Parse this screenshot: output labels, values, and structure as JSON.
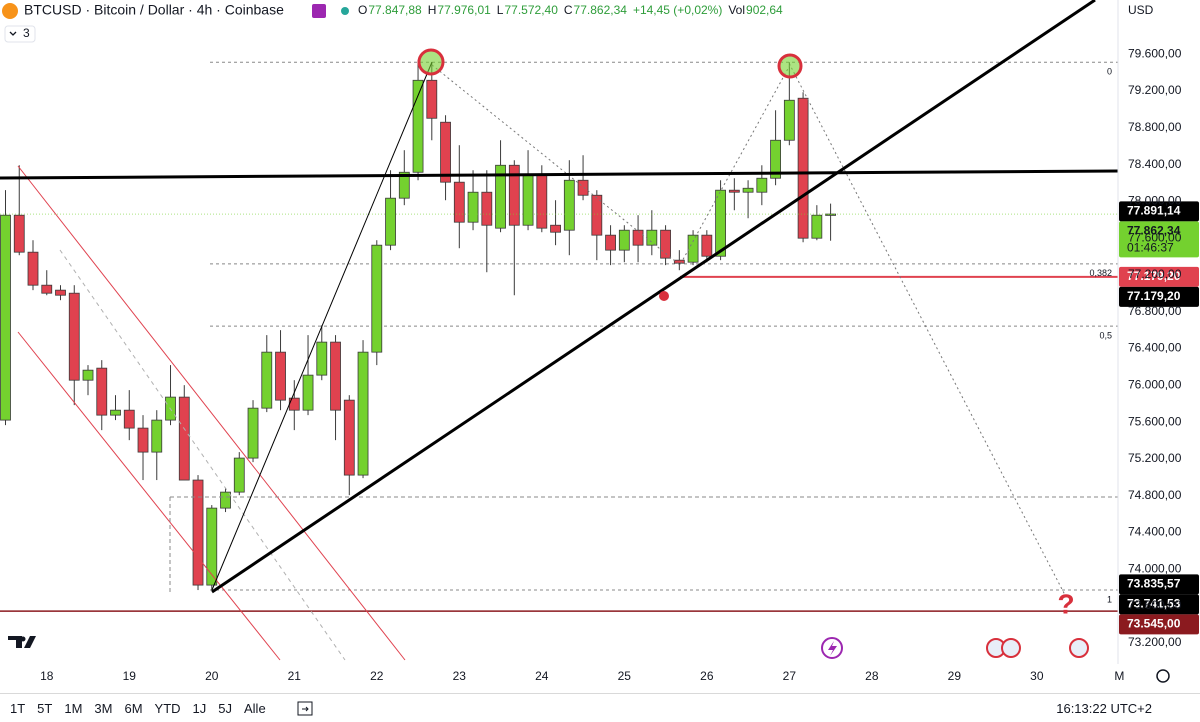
{
  "header": {
    "symbol": "BTCUSD · Bitcoin / Dollar · 4h · Coinbase",
    "ohlc": [
      {
        "key": "O",
        "value": "77.847,88"
      },
      {
        "key": "H",
        "value": "77.976,01"
      },
      {
        "key": "L",
        "value": "77.572,40"
      },
      {
        "key": "C",
        "value": "77.862,34"
      }
    ],
    "change": "+14,45 (+0,02%)",
    "vol_key": "Vol",
    "vol": "902,64",
    "indicators": "3",
    "currency": "USD"
  },
  "chart_data": {
    "type": "candlestick",
    "open": [
      75622,
      77850,
      77448,
      77089,
      77035,
      77002,
      76056,
      76187,
      75676,
      75730,
      75535,
      75274,
      75622,
      75872,
      74970,
      73828,
      74665,
      74839,
      75209,
      75752,
      76361,
      75861,
      75730,
      76111,
      76470,
      75839,
      75024,
      76361,
      77524,
      78035,
      78317,
      79317,
      78861,
      78209,
      77774,
      78100,
      77709,
      78393,
      77741,
      78285,
      77741,
      77687,
      78230,
      78067,
      77633,
      77470,
      77687,
      77524,
      77687,
      77361,
      77339,
      77633,
      77404,
      78122,
      78100,
      78100,
      78252,
      78665,
      79122,
      77600,
      77847.88
    ],
    "high": [
      78122,
      78393,
      77578,
      77252,
      77089,
      77089,
      76220,
      76274,
      75893,
      75948,
      75676,
      75730,
      76220,
      76002,
      75024,
      74698,
      74883,
      75274,
      75839,
      76546,
      76600,
      76056,
      76546,
      76654,
      76546,
      75893,
      76491,
      77578,
      78339,
      78557,
      79535,
      79513,
      78937,
      78611,
      78339,
      78339,
      78665,
      78448,
      78557,
      78393,
      78013,
      78448,
      78502,
      78122,
      77741,
      77741,
      77850,
      77904,
      77741,
      77470,
      77687,
      77687,
      78230,
      78252,
      78230,
      78393,
      78991,
      79513,
      79187,
      77959,
      77976.01
    ],
    "low": [
      75567,
      77415,
      77035,
      76980,
      76926,
      75785,
      75893,
      75513,
      75622,
      75404,
      74970,
      74970,
      75567,
      74970,
      73774,
      73774,
      74622,
      74806,
      75165,
      75709,
      75730,
      75513,
      75676,
      76056,
      75404,
      74806,
      74991,
      76220,
      77470,
      77959,
      78230,
      78665,
      78013,
      77491,
      77687,
      77230,
      77665,
      76980,
      77687,
      77665,
      77524,
      77415,
      78013,
      77361,
      77307,
      77339,
      77339,
      77415,
      77307,
      77252,
      77307,
      77339,
      77361,
      77904,
      77817,
      77959,
      78176,
      78611,
      77556,
      77578,
      77572.4
    ],
    "close": [
      77850,
      77448,
      77089,
      77002,
      76980,
      76056,
      76165,
      75676,
      75730,
      75535,
      75274,
      75622,
      75872,
      74970,
      73828,
      74665,
      74839,
      75209,
      75752,
      76361,
      75839,
      75730,
      76111,
      76470,
      75730,
      75024,
      76361,
      77524,
      78035,
      78317,
      79317,
      78904,
      78209,
      77774,
      78100,
      77741,
      78393,
      77741,
      78285,
      77709,
      77665,
      78230,
      78067,
      77633,
      77470,
      77687,
      77524,
      77687,
      77383,
      77328,
      77633,
      77404,
      78122,
      78100,
      78143,
      78252,
      78665,
      79100,
      77600,
      77850,
      77862.34
    ],
    "up_color": "#74d12f",
    "down_color": "#e0424f",
    "xlim": [
      -0.4,
      80.9
    ],
    "xticks": [
      {
        "value": 3,
        "label": "18"
      },
      {
        "value": 9,
        "label": "19"
      },
      {
        "value": 15,
        "label": "20"
      },
      {
        "value": 21,
        "label": "21"
      },
      {
        "value": 27,
        "label": "22"
      },
      {
        "value": 33,
        "label": "23"
      },
      {
        "value": 39,
        "label": "24"
      },
      {
        "value": 45,
        "label": "25"
      },
      {
        "value": 51,
        "label": "26"
      },
      {
        "value": 57,
        "label": "27"
      },
      {
        "value": 63,
        "label": "28"
      },
      {
        "value": 69,
        "label": "29"
      },
      {
        "value": 75,
        "label": "30"
      },
      {
        "value": 81,
        "label": "M"
      }
    ],
    "ylim": [
      72970,
      80190
    ],
    "yticks": [
      {
        "value": 73200,
        "label": "73.200,00"
      },
      {
        "value": 73600,
        "label": "73.600,00"
      },
      {
        "value": 74000,
        "label": "74.000,00"
      },
      {
        "value": 74400,
        "label": "74.400,00"
      },
      {
        "value": 74800,
        "label": "74.800,00"
      },
      {
        "value": 75200,
        "label": "75.200,00"
      },
      {
        "value": 75600,
        "label": "75.600,00"
      },
      {
        "value": 76000,
        "label": "76.000,00"
      },
      {
        "value": 76400,
        "label": "76.400,00"
      },
      {
        "value": 76800,
        "label": "76.800,00"
      },
      {
        "value": 77200,
        "label": "77.200,00"
      },
      {
        "value": 77600,
        "label": "77.600,00"
      },
      {
        "value": 78000,
        "label": "78.000,00"
      },
      {
        "value": 78400,
        "label": "78.400,00"
      },
      {
        "value": 78800,
        "label": "78.800,00"
      },
      {
        "value": 79200,
        "label": "79.200,00"
      },
      {
        "value": 79600,
        "label": "79.600,00"
      }
    ],
    "grid": false,
    "price_tags": [
      {
        "value": 77891.14,
        "label": "77.891,14",
        "color": "#000000"
      },
      {
        "value": 77862.34,
        "label": "77.862,34",
        "sub": "01:46:37",
        "color": "#74d12f",
        "line": "dotted"
      },
      {
        "value": 77179.2,
        "label": "77.179,20",
        "color": "#e0424f",
        "line": "ray"
      },
      {
        "value": 77179.2,
        "label": "77.179,20",
        "color": "#000000"
      },
      {
        "value": 73835.57,
        "label": "73.835,57",
        "color": "#000000"
      },
      {
        "value": 73741.53,
        "label": "73.741,53",
        "color": "#000000"
      },
      {
        "value": 73545.0,
        "label": "73.545,00",
        "color": "#8b1a1f",
        "line": "solid"
      }
    ],
    "fib_levels": [
      {
        "label": "0",
        "price": 79513
      },
      {
        "label": "0,382",
        "price": 77321
      },
      {
        "label": "0,5",
        "price": 76644
      },
      {
        "label": "1",
        "price": 73774
      }
    ],
    "annotation": "?"
  },
  "toolbar": {
    "ranges": [
      "1T",
      "5T",
      "1M",
      "3M",
      "6M",
      "YTD",
      "1J",
      "5J",
      "Alle"
    ],
    "clock": "16:13:22 UTC+2"
  }
}
